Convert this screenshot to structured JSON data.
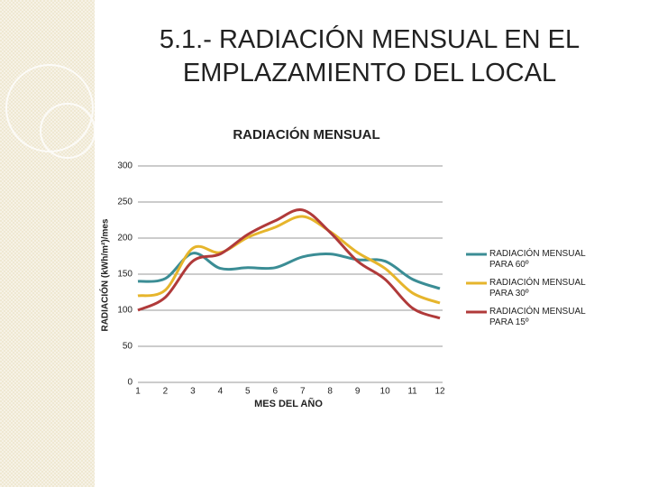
{
  "slide": {
    "title": "5.1.- RADIACIÓN MENSUAL EN EL EMPLAZAMIENTO DEL LOCAL"
  },
  "chart_data": {
    "type": "line",
    "title": "RADIACIÓN MENSUAL",
    "x_label": "MES DEL AÑO",
    "y_label": "RADIACIÓN (kWh/m²)/mes",
    "x": [
      1,
      2,
      3,
      4,
      5,
      6,
      7,
      8,
      9,
      10,
      11,
      12
    ],
    "xlim": [
      1,
      12
    ],
    "xticks": [
      1,
      2,
      3,
      4,
      5,
      6,
      7,
      8,
      9,
      10,
      11,
      12
    ],
    "ylim": [
      0,
      300
    ],
    "yticks": [
      0,
      50,
      100,
      150,
      200,
      250,
      300
    ],
    "grid": true,
    "legend": "right",
    "series": [
      {
        "name": "RADIACIÓN MENSUAL PARA 60º",
        "color": "#3b8d95",
        "values": [
          140,
          144,
          179,
          158,
          159,
          159,
          174,
          178,
          170,
          168,
          143,
          130
        ]
      },
      {
        "name": "RADIACIÓN MENSUAL PARA 30º",
        "color": "#e6b52c",
        "values": [
          120,
          128,
          186,
          180,
          201,
          215,
          230,
          209,
          180,
          158,
          124,
          110
        ]
      },
      {
        "name": "RADIACIÓN MENSUAL PARA 15º",
        "color": "#b03a3a",
        "values": [
          100,
          118,
          168,
          178,
          205,
          224,
          239,
          208,
          168,
          143,
          103,
          89
        ]
      }
    ]
  }
}
